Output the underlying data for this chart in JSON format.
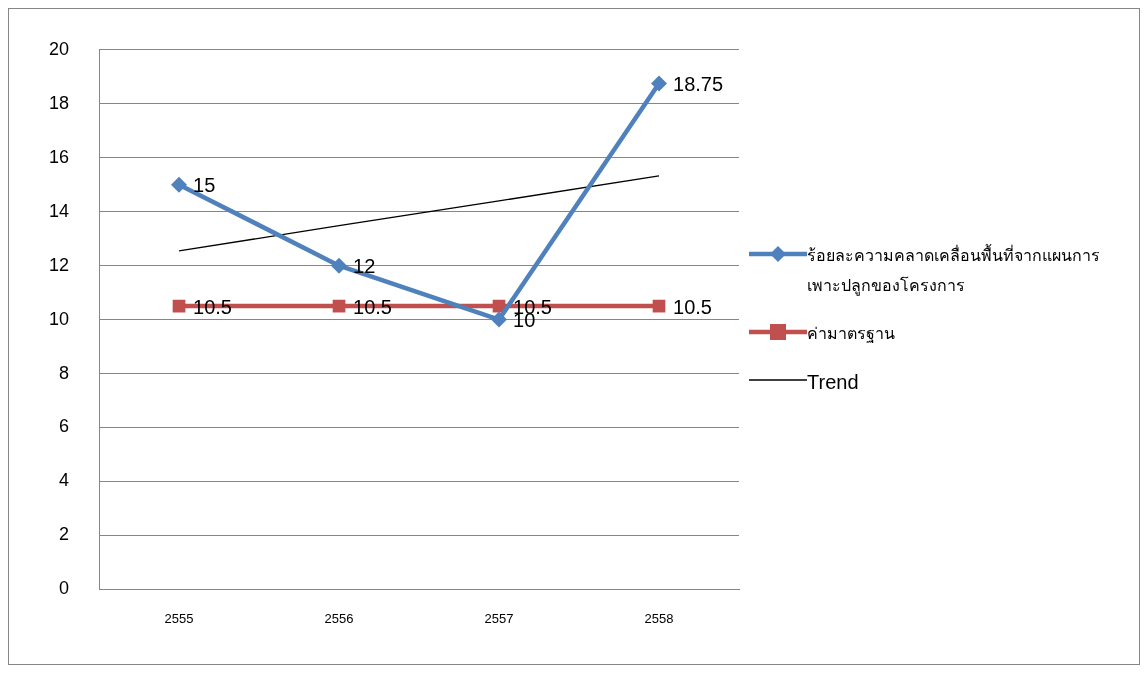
{
  "chart_data": {
    "type": "line",
    "categories": [
      "2555",
      "2556",
      "2557",
      "2558"
    ],
    "ylim": [
      0,
      20
    ],
    "yticks": [
      0,
      2,
      4,
      6,
      8,
      10,
      12,
      14,
      16,
      18,
      20
    ],
    "grid": "y",
    "legend": "right",
    "series": [
      {
        "name": "ร้อยละความคลาดเคลื่อนพื้นที่จากแผนการเพาะปลูกของโครงการ",
        "color": "#4f81bd",
        "values": [
          15,
          12,
          10,
          18.75
        ],
        "marker": "diamond",
        "value_labels": [
          "15",
          "12",
          "10",
          "18.75"
        ]
      },
      {
        "name": "ค่ามาตรฐาน",
        "color": "#c0504d",
        "values": [
          10.5,
          10.5,
          10.5,
          10.5
        ],
        "marker": "square",
        "value_labels": [
          "10.5",
          "10.5",
          "10.5",
          "10.5"
        ]
      },
      {
        "name": "Trend",
        "color": "#000000",
        "values": [
          12.55,
          13.48,
          14.4,
          15.33
        ],
        "marker": "none"
      }
    ]
  }
}
